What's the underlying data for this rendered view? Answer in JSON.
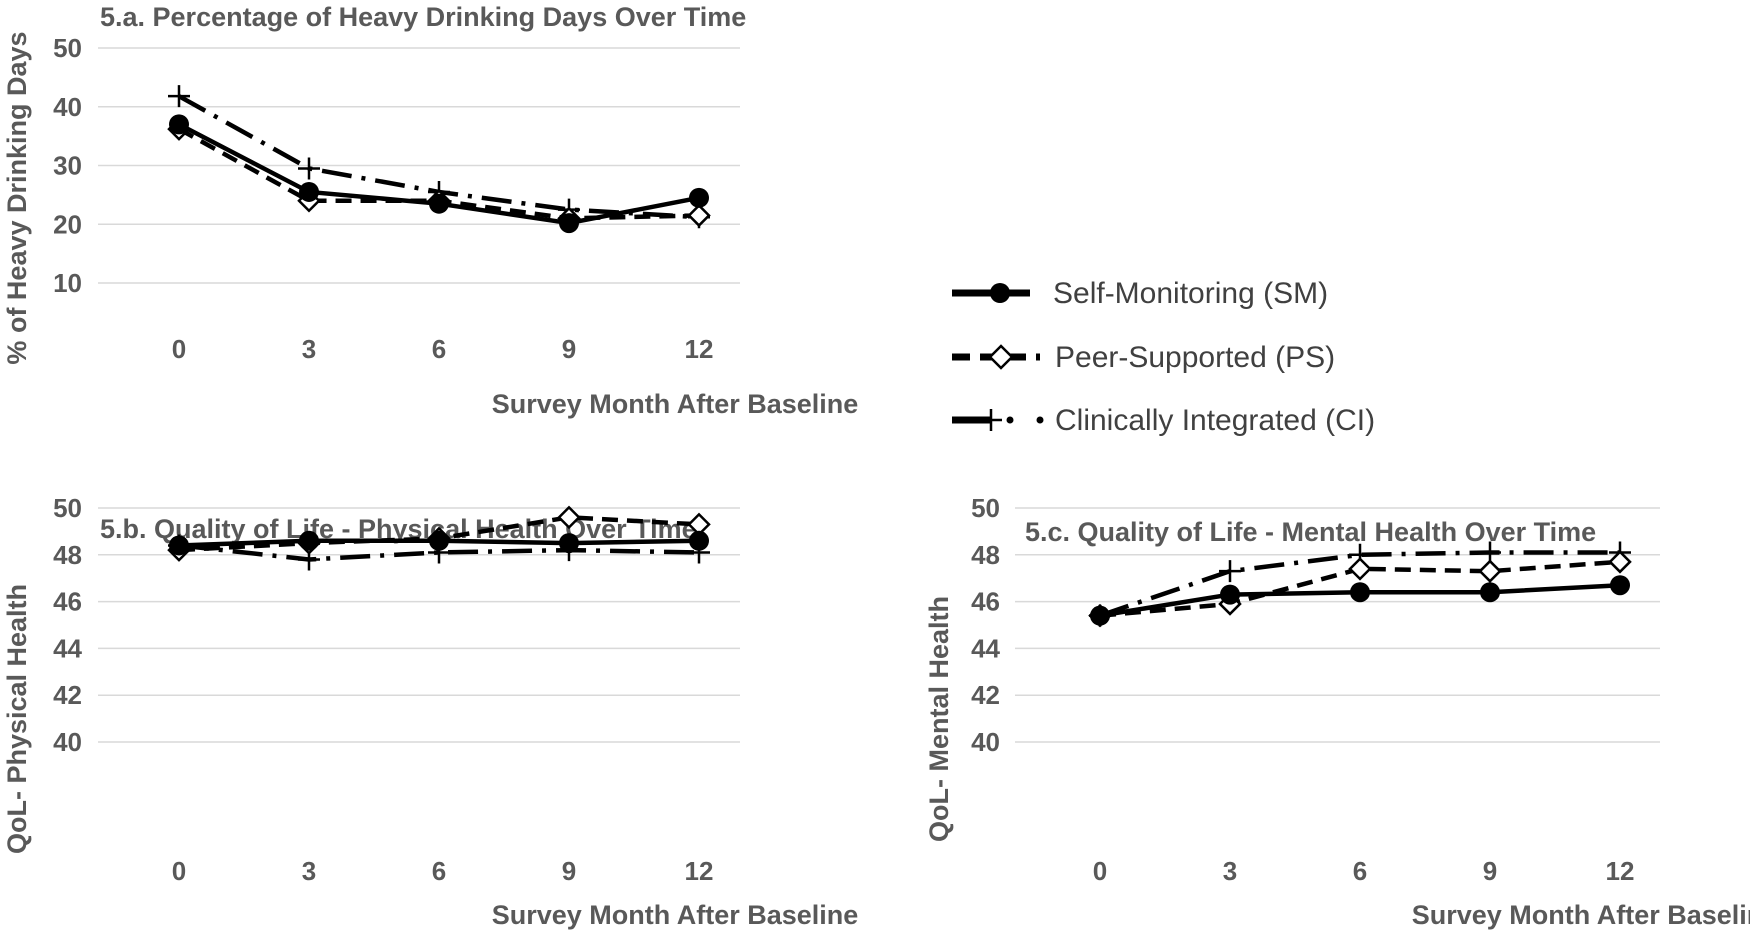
{
  "legend": {
    "items": [
      {
        "key": "SM",
        "label": "Self-Monitoring (SM)",
        "style": "solid",
        "marker": "circle"
      },
      {
        "key": "PS",
        "label": "Peer-Supported (PS)",
        "style": "dash",
        "marker": "diamond"
      },
      {
        "key": "CI",
        "label": "Clinically Integrated (CI)",
        "style": "dashdot",
        "marker": "plus"
      }
    ]
  },
  "colors": {
    "line": "#000000",
    "text": "#595959",
    "grid": "#d9d9d9"
  },
  "chart_data": [
    {
      "id": "a",
      "type": "line",
      "title": "5.a. Percentage of Heavy Drinking Days Over Time",
      "xlabel": "Survey Month After Baseline",
      "ylabel": "% of Heavy Drinking Days",
      "x": [
        0,
        3,
        6,
        9,
        12
      ],
      "ylim": [
        10,
        50
      ],
      "yticks": [
        10,
        20,
        30,
        40,
        50
      ],
      "grid": true,
      "series": [
        {
          "name": "Self-Monitoring (SM)",
          "values": [
            37,
            25.5,
            23.5,
            20.2,
            24.5
          ]
        },
        {
          "name": "Peer-Supported (PS)",
          "values": [
            36.2,
            24,
            24,
            21,
            21.5
          ]
        },
        {
          "name": "Clinically Integrated (CI)",
          "values": [
            41.8,
            29.5,
            25.5,
            22.5,
            21.2
          ]
        }
      ]
    },
    {
      "id": "b",
      "type": "line",
      "title": "5.b. Quality of Life - Physical Health Over Time",
      "xlabel": "Survey Month After Baseline",
      "ylabel": "QoL- Physical Health",
      "x": [
        0,
        3,
        6,
        9,
        12
      ],
      "ylim": [
        40,
        50
      ],
      "yticks": [
        40,
        42,
        44,
        46,
        48,
        50
      ],
      "grid": true,
      "series": [
        {
          "name": "Self-Monitoring (SM)",
          "values": [
            48.4,
            48.6,
            48.6,
            48.5,
            48.6
          ]
        },
        {
          "name": "Peer-Supported (PS)",
          "values": [
            48.2,
            48.5,
            48.7,
            49.6,
            49.3
          ]
        },
        {
          "name": "Clinically Integrated (CI)",
          "values": [
            48.4,
            47.8,
            48.1,
            48.2,
            48.1
          ]
        }
      ]
    },
    {
      "id": "c",
      "type": "line",
      "title": "5.c. Quality of Life - Mental Health Over Time",
      "xlabel": "Survey Month After Baseline",
      "ylabel": "QoL- Mental Health",
      "x": [
        0,
        3,
        6,
        9,
        12
      ],
      "ylim": [
        40,
        50
      ],
      "yticks": [
        40,
        42,
        44,
        46,
        48,
        50
      ],
      "grid": true,
      "series": [
        {
          "name": "Self-Monitoring (SM)",
          "values": [
            45.4,
            46.3,
            46.4,
            46.4,
            46.7
          ]
        },
        {
          "name": "Peer-Supported (PS)",
          "values": [
            45.4,
            45.9,
            47.4,
            47.3,
            47.7
          ]
        },
        {
          "name": "Clinically Integrated (CI)",
          "values": [
            45.4,
            47.3,
            48,
            48.1,
            48.1
          ]
        }
      ]
    }
  ]
}
